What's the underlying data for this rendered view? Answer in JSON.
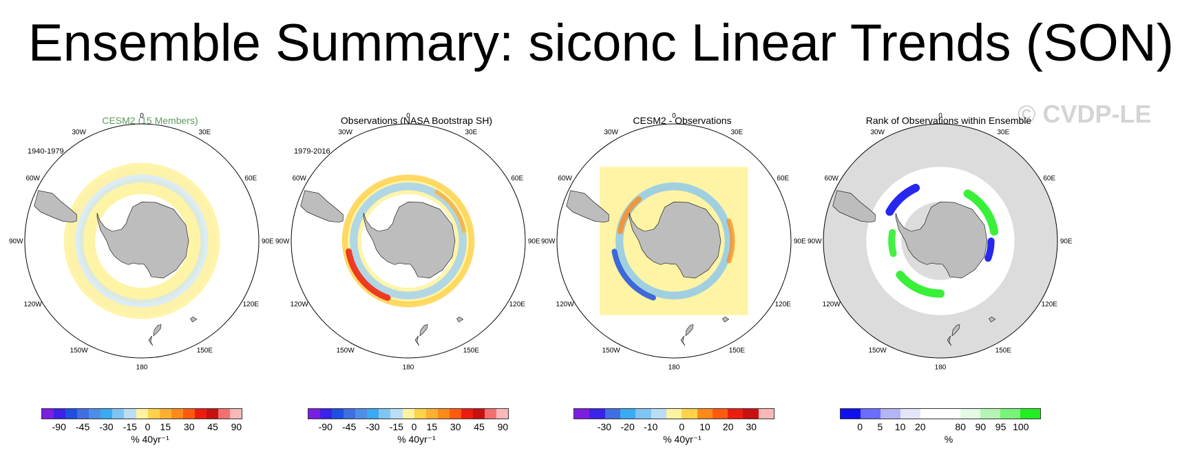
{
  "title": "Ensemble Summary: siconc Linear Trends (SON)",
  "watermark": "© CVDP-LE",
  "colors": {
    "land": "#bdbdbd",
    "ocean": "#ffffff",
    "rank_background": "#dcdcdc",
    "panel1_title": "#5c9a5c"
  },
  "meridian_labels": [
    "0",
    "30E",
    "60E",
    "90E",
    "120E",
    "150E",
    "180",
    "150W",
    "120W",
    "90W",
    "60W",
    "30W"
  ],
  "colorbars": {
    "trend90": {
      "colors": [
        "#7a1fe0",
        "#3a22e8",
        "#1f4fe0",
        "#3f6fe0",
        "#4f8ee8",
        "#3aaaf2",
        "#80c4f4",
        "#b9def6",
        "#fff3a0",
        "#ffd24a",
        "#ffb030",
        "#ff8a1a",
        "#ff5a10",
        "#ec1d10",
        "#c81010",
        "#f27070",
        "#fbb8b8"
      ],
      "ticks": [
        "-90",
        "-45",
        "-30",
        "-15",
        "0",
        "15",
        "30",
        "45",
        "90"
      ]
    },
    "trend30": {
      "colors": [
        "#7a1fe0",
        "#3a22e8",
        "#3f6fe0",
        "#3aaaf2",
        "#80c4f4",
        "#b9def6",
        "#fff3a0",
        "#ffd24a",
        "#ff8a1a",
        "#ff5a10",
        "#ec1d10",
        "#c81010",
        "#fbb8b8"
      ],
      "ticks": [
        "-30",
        "-20",
        "-10",
        "0",
        "10",
        "20",
        "30"
      ]
    },
    "rank": {
      "colors": [
        "#1010ee",
        "#6c6cff",
        "#b4b4f8",
        "#e4e4fa",
        "#ffffff",
        "#ffffff",
        "#e4fae4",
        "#b4f4b4",
        "#78f478",
        "#22ee22"
      ],
      "ticks": [
        "0",
        "5",
        "10",
        "20",
        "80",
        "90",
        "95",
        "100"
      ]
    }
  },
  "panels": [
    {
      "title": "CESM2 (15 Members)",
      "period": "1940-1979",
      "units": "% 40yr⁻¹",
      "colorbar": "trend90",
      "rings": [
        {
          "kind": "ring",
          "inner_lat": -66,
          "outer_lat": -58,
          "color": "#fff3a0",
          "opacity": 0.95
        },
        {
          "kind": "ring",
          "inner_lat": -60,
          "outer_lat": -52,
          "color": "#cfe6f4",
          "opacity": 0.75
        },
        {
          "kind": "ring",
          "inner_lat": -56,
          "outer_lat": -50,
          "color": "#fff3a0",
          "opacity": 0.9
        }
      ]
    },
    {
      "title": "Observations (NASA Bootstrap SH)",
      "period": "1979-2016",
      "units": "% 40yr⁻¹",
      "colorbar": "trend90",
      "rings": [
        {
          "kind": "ring",
          "inner_lat": -66,
          "outer_lat": -58,
          "color": "#fff3a0",
          "opacity": 0.9
        },
        {
          "kind": "ring",
          "inner_lat": -64,
          "outer_lat": -60,
          "color": "#9fd0f2",
          "opacity": 0.8
        },
        {
          "kind": "ring",
          "inner_lat": -59,
          "outer_lat": -56,
          "color": "#ffd24a",
          "opacity": 0.85
        },
        {
          "kind": "arc",
          "lat": -59,
          "lon_from": 200,
          "lon_to": 260,
          "width": 9,
          "color": "#ec1d10",
          "opacity": 0.85
        },
        {
          "kind": "arc",
          "lat": -61,
          "lon_from": 30,
          "lon_to": 80,
          "width": 6,
          "color": "#ffb030",
          "opacity": 0.8
        }
      ]
    },
    {
      "title": "CESM2 - Observations",
      "period": "",
      "units": "% 40yr⁻¹",
      "colorbar": "trend30",
      "rings": [
        {
          "kind": "square",
          "half_lat": -52,
          "color": "#fff3a0",
          "opacity": 0.95
        },
        {
          "kind": "ring",
          "inner_lat": -64,
          "outer_lat": -60,
          "color": "#80c4f4",
          "opacity": 0.75
        },
        {
          "kind": "arc",
          "lat": -59,
          "lon_from": 200,
          "lon_to": 260,
          "width": 8,
          "color": "#1f4fe0",
          "opacity": 0.85
        },
        {
          "kind": "arc",
          "lat": -62,
          "lon_from": 280,
          "lon_to": 320,
          "width": 8,
          "color": "#ff8a1a",
          "opacity": 0.8
        },
        {
          "kind": "arc",
          "lat": -60,
          "lon_from": 70,
          "lon_to": 110,
          "width": 7,
          "color": "#ff8a1a",
          "opacity": 0.75
        }
      ]
    },
    {
      "title": "Rank of Observations within Ensemble",
      "period": "",
      "units": "%",
      "colorbar": "rank",
      "rings": [
        {
          "kind": "disk",
          "color": "#dcdcdc",
          "opacity": 1
        },
        {
          "kind": "ring",
          "inner_lat": -70,
          "outer_lat": -52,
          "color": "#ffffff",
          "opacity": 1
        },
        {
          "kind": "arc",
          "lat": -62,
          "lon_from": 30,
          "lon_to": 80,
          "width": 12,
          "color": "#22ee22",
          "opacity": 0.9
        },
        {
          "kind": "arc",
          "lat": -63,
          "lon_from": 180,
          "lon_to": 230,
          "width": 12,
          "color": "#22ee22",
          "opacity": 0.9
        },
        {
          "kind": "arc",
          "lat": -60,
          "lon_from": 300,
          "lon_to": 335,
          "width": 12,
          "color": "#1010ee",
          "opacity": 0.9
        },
        {
          "kind": "arc",
          "lat": -64,
          "lon_from": 90,
          "lon_to": 110,
          "width": 10,
          "color": "#1010ee",
          "opacity": 0.9
        },
        {
          "kind": "arc",
          "lat": -65,
          "lon_from": 255,
          "lon_to": 280,
          "width": 10,
          "color": "#22ee22",
          "opacity": 0.85
        }
      ]
    }
  ]
}
